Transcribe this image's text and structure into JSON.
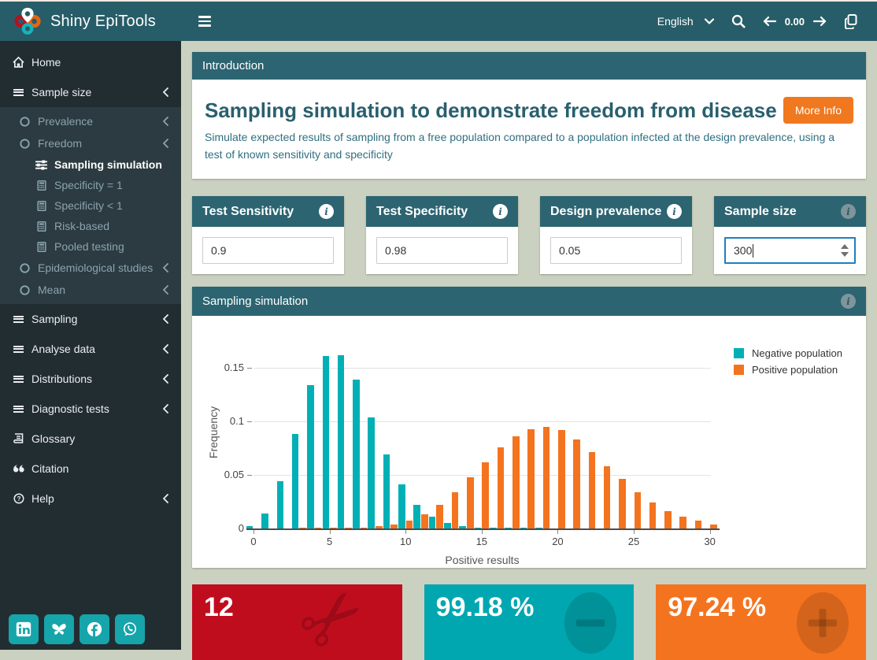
{
  "app": {
    "title": "Shiny EpiTools"
  },
  "navbar": {
    "language": "English",
    "counter": "0.00",
    "icons": [
      "menu-icon",
      "chevron-down-icon",
      "search-icon",
      "arrow-left-icon",
      "arrow-right-icon",
      "copy-icon"
    ]
  },
  "sidebar": {
    "items": [
      {
        "label": "Home",
        "icon": "home-icon",
        "level": "top",
        "chevron": false,
        "active": false
      },
      {
        "label": "Sample size",
        "icon": "bars-icon",
        "level": "top",
        "chevron": true,
        "active": false
      },
      {
        "label": "Prevalence",
        "icon": "circle-icon",
        "level": "sub1",
        "chevron": true,
        "active": false
      },
      {
        "label": "Freedom",
        "icon": "circle-icon",
        "level": "sub1",
        "chevron": true,
        "active": false
      },
      {
        "label": "Sampling simulation",
        "icon": "sliders-icon",
        "level": "sub2",
        "chevron": false,
        "active": true
      },
      {
        "label": "Specificity = 1",
        "icon": "calculator-icon",
        "level": "sub2",
        "chevron": false,
        "active": false
      },
      {
        "label": "Specificity < 1",
        "icon": "calculator-icon",
        "level": "sub2",
        "chevron": false,
        "active": false
      },
      {
        "label": "Risk-based",
        "icon": "calculator-icon",
        "level": "sub2",
        "chevron": false,
        "active": false
      },
      {
        "label": "Pooled testing",
        "icon": "calculator-icon",
        "level": "sub2",
        "chevron": false,
        "active": false
      },
      {
        "label": "Epidemiological studies",
        "icon": "circle-icon",
        "level": "sub1",
        "chevron": true,
        "active": false
      },
      {
        "label": "Mean",
        "icon": "circle-icon",
        "level": "sub1",
        "chevron": true,
        "active": false
      },
      {
        "label": "Sampling",
        "icon": "bars-icon",
        "level": "top",
        "chevron": true,
        "active": false
      },
      {
        "label": "Analyse data",
        "icon": "bars-icon",
        "level": "top",
        "chevron": true,
        "active": false
      },
      {
        "label": "Distributions",
        "icon": "bars-icon",
        "level": "top",
        "chevron": true,
        "active": false
      },
      {
        "label": "Diagnostic tests",
        "icon": "bars-icon",
        "level": "top",
        "chevron": true,
        "active": false
      },
      {
        "label": "Glossary",
        "icon": "book-icon",
        "level": "top",
        "chevron": false,
        "active": false
      },
      {
        "label": "Citation",
        "icon": "quote-icon",
        "level": "top",
        "chevron": false,
        "active": false
      },
      {
        "label": "Help",
        "icon": "question-icon",
        "level": "top",
        "chevron": true,
        "active": false
      }
    ],
    "social": [
      {
        "name": "linkedin"
      },
      {
        "name": "bluesky"
      },
      {
        "name": "facebook"
      },
      {
        "name": "whatsapp"
      }
    ]
  },
  "intro": {
    "panel_title": "Introduction",
    "title": "Sampling simulation to demonstrate freedom from disease",
    "more_info_label": "More Info",
    "description": "Simulate expected results of sampling from a free population compared to a population infected at the design prevalence, using a test of known sensitivity and specificity"
  },
  "inputs": [
    {
      "label": "Test Sensitivity",
      "value": "0.9",
      "focused": false,
      "spinner": false,
      "info_dim": false
    },
    {
      "label": "Test Specificity",
      "value": "0.98",
      "focused": false,
      "spinner": false,
      "info_dim": false
    },
    {
      "label": "Design prevalence",
      "value": "0.05",
      "focused": false,
      "spinner": false,
      "info_dim": false
    },
    {
      "label": "Sample size",
      "value": "300",
      "focused": true,
      "spinner": true,
      "info_dim": true
    }
  ],
  "chart_panel": {
    "title": "Sampling simulation"
  },
  "chart_data": {
    "type": "bar",
    "title": "",
    "xlabel": "Positive results",
    "ylabel": "Frequency",
    "x": [
      0,
      1,
      2,
      3,
      4,
      5,
      6,
      7,
      8,
      9,
      10,
      11,
      12,
      13,
      14,
      15,
      16,
      17,
      18,
      19,
      20,
      21,
      22,
      23,
      24,
      25,
      26,
      27,
      28,
      29,
      30
    ],
    "series": [
      {
        "name": "Negative population",
        "color": "#00b0b5",
        "values": [
          0.002,
          0.014,
          0.044,
          0.088,
          0.134,
          0.161,
          0.162,
          0.139,
          0.104,
          0.069,
          0.041,
          0.022,
          0.011,
          0.005,
          0.002,
          0.001,
          0.001,
          0.001,
          0.001,
          0.001,
          0,
          0,
          0,
          0,
          0,
          0,
          0,
          0,
          0,
          0,
          0
        ]
      },
      {
        "name": "Positive population",
        "color": "#f4731f",
        "values": [
          0,
          0,
          0,
          0.001,
          0.001,
          0.001,
          0.001,
          0.001,
          0.002,
          0.004,
          0.007,
          0.013,
          0.022,
          0.034,
          0.048,
          0.062,
          0.076,
          0.086,
          0.093,
          0.095,
          0.092,
          0.083,
          0.071,
          0.058,
          0.046,
          0.034,
          0.024,
          0.016,
          0.011,
          0.007,
          0.004
        ]
      }
    ],
    "ylim": [
      0,
      0.1765
    ],
    "yticks": [
      "0",
      "0.05",
      "0.1",
      "0.15"
    ],
    "ytick_values": [
      0,
      0.05,
      0.1,
      0.15
    ],
    "xticks": [
      0,
      5,
      10,
      15,
      20,
      25,
      30
    ],
    "grid": true,
    "legend_position": "top-right"
  },
  "value_boxes": [
    {
      "value": "12",
      "icon": "scissors-icon",
      "color": "#c00d1e"
    },
    {
      "value": "99.18 %",
      "icon": "minus-circle-icon",
      "color": "#00a7b0"
    },
    {
      "value": "97.24 %",
      "icon": "plus-circle-icon",
      "color": "#f4731f"
    }
  ]
}
